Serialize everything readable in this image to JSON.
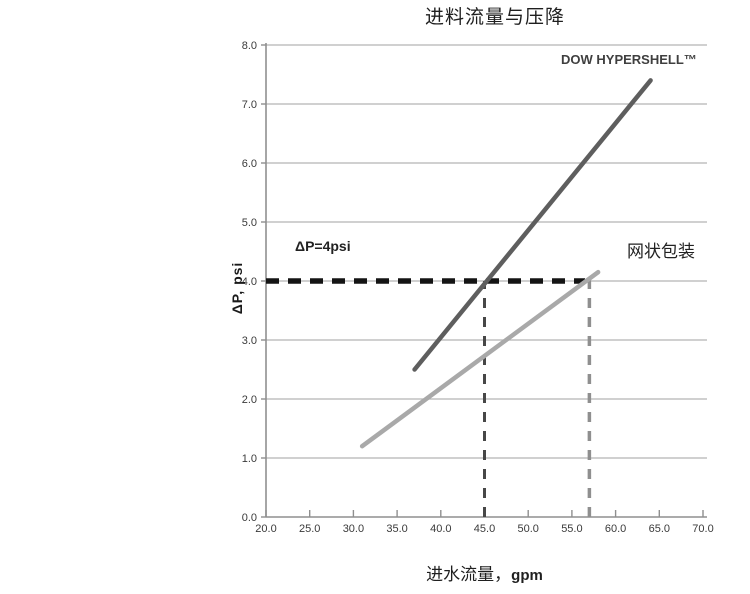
{
  "figure": {
    "title": "进料流量与压降",
    "x_axis_label_text": "进水流量，",
    "x_axis_label_unit": "gpm",
    "y_axis_label": "ΔP, psi",
    "annotation": "ΔP=4psi",
    "label_hypershell": "DOW HYPERSHELL™",
    "label_mesh": "网状包装"
  },
  "chart_data": {
    "type": "line",
    "title": "进料流量与压降",
    "xlabel": "进水流量，gpm",
    "ylabel": "ΔP, psi",
    "xlim": [
      20.0,
      70.0
    ],
    "ylim": [
      0.0,
      8.0
    ],
    "x_ticks": [
      20,
      25,
      30,
      35,
      40,
      45,
      50,
      55,
      60,
      65,
      70
    ],
    "x_tick_labels": [
      "20.0",
      "25.0",
      "30.0",
      "35.0",
      "40.0",
      "45.0",
      "50.0",
      "55.0",
      "60.0",
      "65.0",
      "70.0"
    ],
    "y_ticks": [
      0,
      1,
      2,
      3,
      4,
      5,
      6,
      7,
      8
    ],
    "y_tick_labels": [
      "0.0",
      "1.0",
      "2.0",
      "3.0",
      "4.0",
      "5.0",
      "6.0",
      "7.0",
      "8.0"
    ],
    "grid": "horizontal-only",
    "legend_position": "inline-labels",
    "axis_color": "#8f8f8f",
    "grid_color": "#b5b5b5",
    "tick_color": "#8f8f8f",
    "series": [
      {
        "name": "DOW HYPERSHELL™",
        "x": [
          37.0,
          64.0
        ],
        "y": [
          2.5,
          7.4
        ],
        "color": "#5e5e5e",
        "style": "solid",
        "width": 4.5
      },
      {
        "name": "网状包装",
        "x": [
          31.0,
          58.0
        ],
        "y": [
          1.2,
          4.15
        ],
        "color": "#a9a9a9",
        "style": "solid",
        "width": 4.5
      }
    ],
    "reference_lines": [
      {
        "name": "dp-4psi-horizontal",
        "label": "ΔP=4psi",
        "orientation": "horizontal",
        "y": 4.0,
        "x_range": [
          20.0,
          56.5
        ],
        "color": "#141414",
        "style": "dashed",
        "width": 5.5,
        "dash": "13 9"
      },
      {
        "name": "hypershell-crossing-vertical",
        "orientation": "vertical",
        "x": 45.0,
        "y_range": [
          0.0,
          4.0
        ],
        "color": "#474747",
        "style": "dashed",
        "width": 3,
        "dash": "10 9"
      },
      {
        "name": "mesh-crossing-vertical",
        "orientation": "vertical",
        "x": 57.0,
        "y_range": [
          0.0,
          4.1
        ],
        "color": "#8f8f8f",
        "style": "dashed",
        "width": 3.5,
        "dash": "10 9"
      }
    ]
  }
}
